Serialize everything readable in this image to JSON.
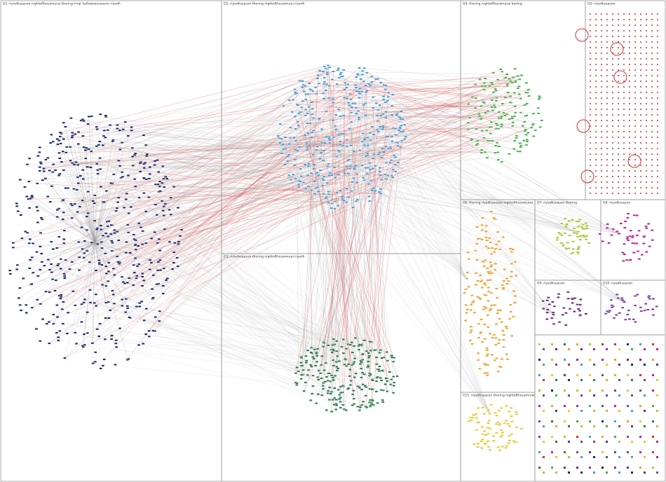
{
  "groups": [
    {
      "label": "G1: riyadhseason nightofthesamurai thering ringr halloweenseason riyadh",
      "color": "#1b2a6b"
    },
    {
      "label": "G2: riyadhseason thering nightofthesamurai riyadh",
      "color": "#4a9bd6"
    },
    {
      "label": "G3: riyadhseason thering nightofthesamurai riyadh",
      "color": "#2e7a4c"
    },
    {
      "label": "G4: thering nightofthesamurai boxing",
      "color": "#4caf50"
    },
    {
      "label": "G5: riyadhseason",
      "color": "#d32f2f"
    },
    {
      "label": "G6: thering riyadhseason nightofthesamurai",
      "color": "#f0a030"
    },
    {
      "label": "G7: riyadhseason thering",
      "color": "#a8c83a"
    },
    {
      "label": "G8: riyadhseason",
      "color": "#c0219a"
    },
    {
      "label": "G9: riyadhseason",
      "color": "#6a2a8a"
    },
    {
      "label": "G10: riyadhseason",
      "color": "#7b3fa0"
    },
    {
      "label": "G11: riyadhseason thering nightofthesamurai",
      "color": "#e8c830"
    }
  ]
}
